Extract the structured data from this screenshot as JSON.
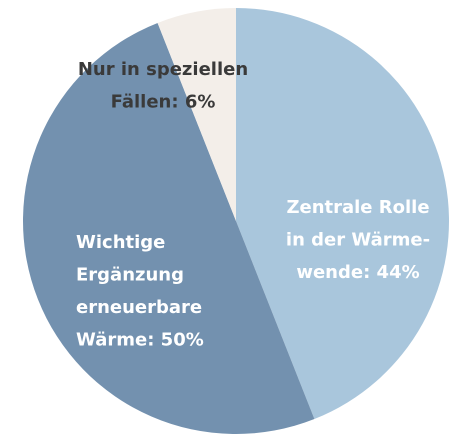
{
  "chart_data": {
    "type": "pie",
    "labels": [
      [
        "Zentrale Rolle",
        "in der Wärme-",
        "wende: 44%"
      ],
      [
        "Wichtige",
        "Ergänzung",
        "erneuerbare",
        "Wärme: 50%"
      ],
      [
        "Nur in speziellen",
        "Fällen: 6%"
      ]
    ],
    "values": [
      44,
      50,
      6
    ],
    "colors": [
      "#a9c6dc",
      "#7391af",
      "#f3eee9"
    ],
    "label_colors": [
      "#ffffff",
      "#ffffff",
      "#3a3a3a"
    ]
  }
}
